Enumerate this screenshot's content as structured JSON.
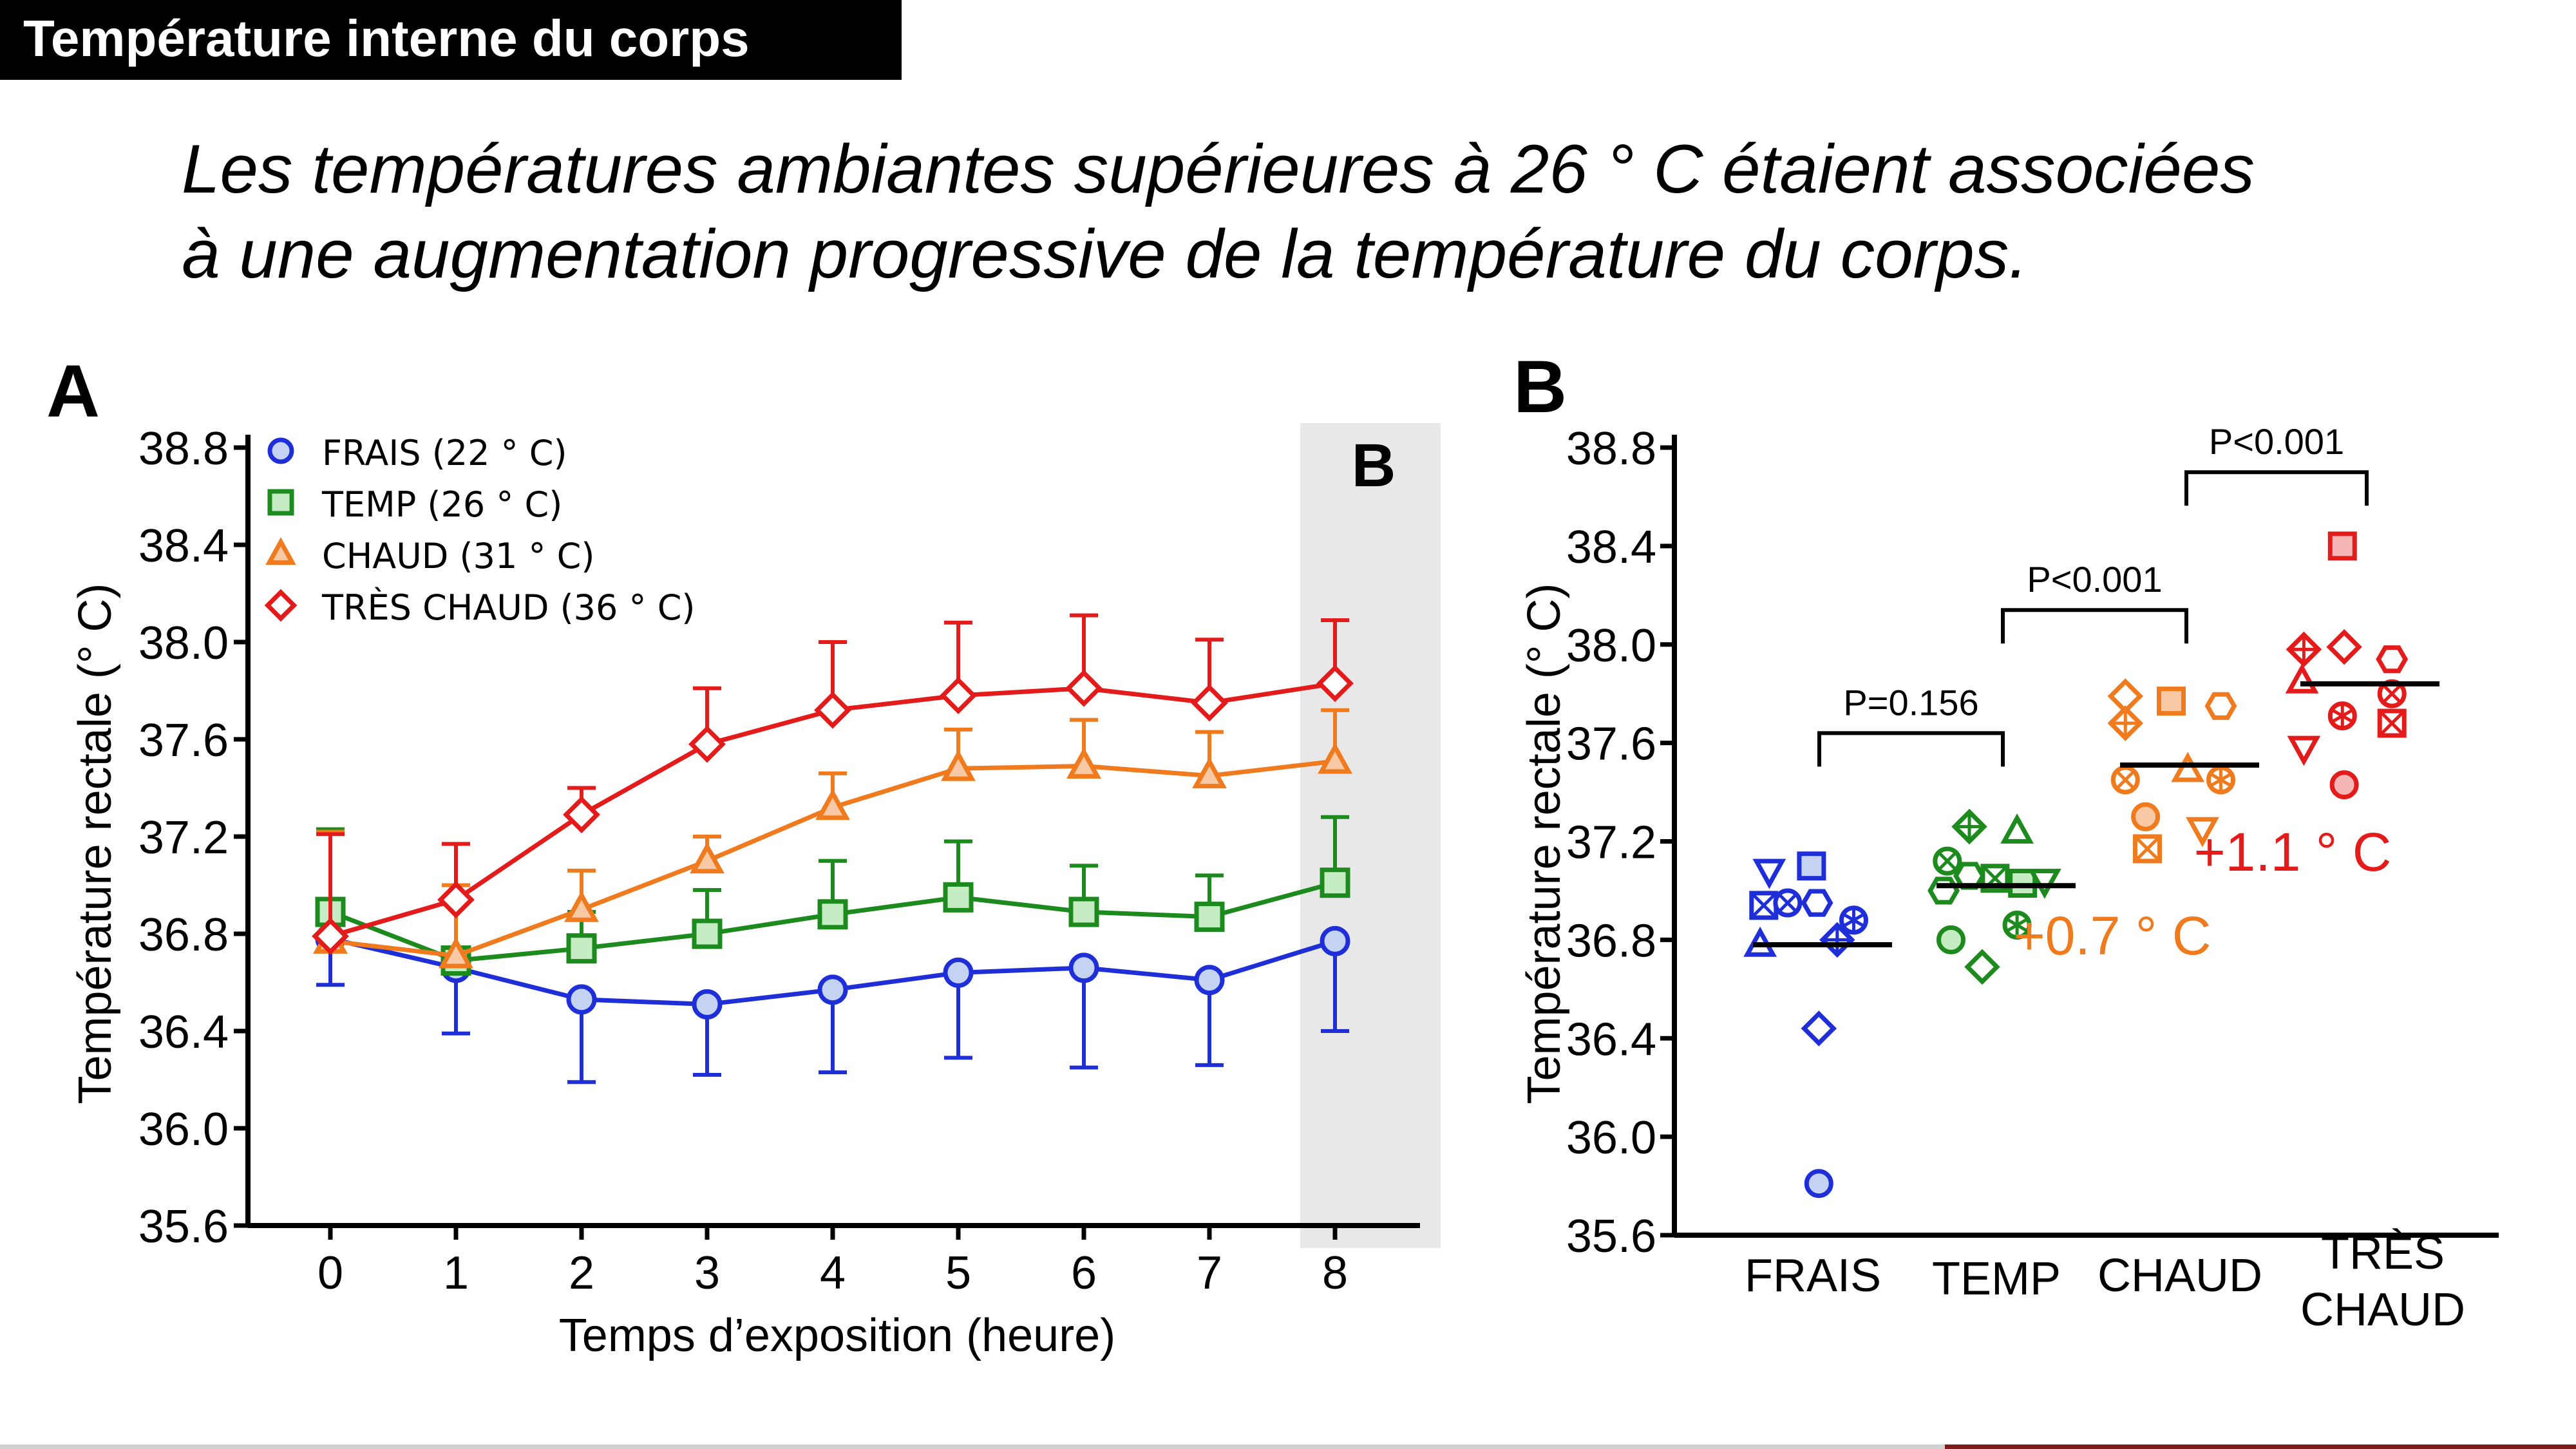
{
  "header": {
    "title": "Température interne du corps"
  },
  "subtitle": {
    "line1": "Les températures ambiantes supérieures à 26 ° C étaient associées",
    "line2": "à une augmentation progressive de la température du corps."
  },
  "colors": {
    "frais": "#1f2fd8",
    "temp": "#1c8a1c",
    "chaud": "#f07a1e",
    "tres_chaud": "#e41b1b"
  },
  "chart_data": [
    {
      "type": "line",
      "panel_label": "A",
      "shaded_label": "B",
      "xlabel": "Temps d’exposition (heure)",
      "ylabel": "Température rectale (° C)",
      "x": [
        0,
        1,
        2,
        3,
        4,
        5,
        6,
        7,
        8
      ],
      "xticks": [
        "0",
        "1",
        "2",
        "3",
        "4",
        "5",
        "6",
        "7",
        "8"
      ],
      "yticks": [
        "35.6",
        "36.0",
        "36.4",
        "36.8",
        "37.2",
        "37.6",
        "38.0",
        "38.4",
        "38.8"
      ],
      "ylim": [
        35.6,
        38.8
      ],
      "shaded_x": 8,
      "legend_position": "top-left",
      "series": [
        {
          "key": "frais",
          "name": "FRAIS (22 °  C)",
          "marker": "circle",
          "values": [
            36.78,
            36.66,
            36.53,
            36.51,
            36.57,
            36.64,
            36.66,
            36.61,
            36.77
          ],
          "errors": [
            0.19,
            0.27,
            0.34,
            0.29,
            0.34,
            0.35,
            0.41,
            0.35,
            0.37
          ]
        },
        {
          "key": "temp",
          "name": "TEMP (26 °  C)",
          "marker": "square",
          "values": [
            36.89,
            36.69,
            36.74,
            36.8,
            36.88,
            36.95,
            36.89,
            36.87,
            37.01
          ],
          "errors": [
            0.34,
            0.26,
            0.15,
            0.18,
            0.22,
            0.23,
            0.19,
            0.17,
            0.27
          ]
        },
        {
          "key": "chaud",
          "name": "CHAUD (31 °  C)",
          "marker": "triangle",
          "values": [
            36.77,
            36.71,
            36.9,
            37.1,
            37.32,
            37.48,
            37.49,
            37.45,
            37.51
          ],
          "errors": [
            0.45,
            0.29,
            0.16,
            0.1,
            0.14,
            0.16,
            0.19,
            0.18,
            0.21
          ]
        },
        {
          "key": "tres_chaud",
          "name": "TRÈS CHAUD (36 °  C)",
          "marker": "diamond",
          "values": [
            36.79,
            36.94,
            37.29,
            37.58,
            37.72,
            37.78,
            37.81,
            37.75,
            37.83
          ],
          "errors": [
            0.42,
            0.23,
            0.11,
            0.23,
            0.28,
            0.3,
            0.3,
            0.26,
            0.26
          ]
        }
      ]
    },
    {
      "type": "scatter",
      "panel_label": "B",
      "ylabel": "Température rectale (° C)",
      "yticks": [
        "35.6",
        "36.0",
        "36.4",
        "36.8",
        "37.2",
        "37.6",
        "38.0",
        "38.4",
        "38.8"
      ],
      "ylim": [
        35.6,
        38.8
      ],
      "categories": [
        "FRAIS",
        "TEMP",
        "CHAUD",
        "TRÈS\nCHAUD"
      ],
      "means": [
        36.78,
        37.02,
        37.51,
        37.84
      ],
      "groups": [
        {
          "key": "frais",
          "points": [
            {
              "dx": -0.29,
              "y": 37.08,
              "m": "tri-down"
            },
            {
              "dx": -0.06,
              "y": 37.1,
              "m": "square"
            },
            {
              "dx": -0.32,
              "y": 36.94,
              "m": "square-x"
            },
            {
              "dx": -0.19,
              "y": 36.95,
              "m": "circle-x"
            },
            {
              "dx": -0.03,
              "y": 36.95,
              "m": "hexagon"
            },
            {
              "dx": 0.17,
              "y": 36.88,
              "m": "circle-star"
            },
            {
              "dx": 0.08,
              "y": 36.8,
              "m": "diamond-plus"
            },
            {
              "dx": -0.34,
              "y": 36.78,
              "m": "triangle"
            },
            {
              "dx": -0.02,
              "y": 36.44,
              "m": "diamond"
            },
            {
              "dx": -0.02,
              "y": 35.81,
              "m": "circle"
            }
          ]
        },
        {
          "key": "temp",
          "points": [
            {
              "dx": -0.2,
              "y": 37.26,
              "m": "diamond-plus"
            },
            {
              "dx": 0.06,
              "y": 37.24,
              "m": "triangle"
            },
            {
              "dx": -0.32,
              "y": 37.12,
              "m": "circle-x"
            },
            {
              "dx": -0.2,
              "y": 37.06,
              "m": "hexagon"
            },
            {
              "dx": -0.06,
              "y": 37.05,
              "m": "square-x"
            },
            {
              "dx": 0.09,
              "y": 37.03,
              "m": "square"
            },
            {
              "dx": 0.21,
              "y": 37.04,
              "m": "tri-down"
            },
            {
              "dx": -0.34,
              "y": 37.0,
              "m": "hexagon"
            },
            {
              "dx": -0.3,
              "y": 36.8,
              "m": "circle"
            },
            {
              "dx": 0.06,
              "y": 36.86,
              "m": "circle-star"
            },
            {
              "dx": -0.13,
              "y": 36.69,
              "m": "diamond"
            }
          ]
        },
        {
          "key": "chaud",
          "points": [
            {
              "dx": -0.35,
              "y": 37.79,
              "m": "diamond"
            },
            {
              "dx": -0.1,
              "y": 37.77,
              "m": "square"
            },
            {
              "dx": 0.17,
              "y": 37.75,
              "m": "hexagon"
            },
            {
              "dx": -0.35,
              "y": 37.68,
              "m": "diamond-plus"
            },
            {
              "dx": -0.01,
              "y": 37.49,
              "m": "triangle"
            },
            {
              "dx": -0.35,
              "y": 37.45,
              "m": "circle-x"
            },
            {
              "dx": 0.17,
              "y": 37.45,
              "m": "circle-star"
            },
            {
              "dx": -0.24,
              "y": 37.3,
              "m": "circle"
            },
            {
              "dx": 0.07,
              "y": 37.25,
              "m": "tri-down"
            },
            {
              "dx": -0.23,
              "y": 37.17,
              "m": "square-x"
            }
          ]
        },
        {
          "key": "tres_chaud",
          "points": [
            {
              "dx": -0.15,
              "y": 38.4,
              "m": "square"
            },
            {
              "dx": -0.36,
              "y": 37.98,
              "m": "diamond-plus"
            },
            {
              "dx": -0.14,
              "y": 37.99,
              "m": "diamond"
            },
            {
              "dx": 0.12,
              "y": 37.94,
              "m": "hexagon"
            },
            {
              "dx": -0.37,
              "y": 37.85,
              "m": "triangle"
            },
            {
              "dx": 0.12,
              "y": 37.8,
              "m": "circle-x"
            },
            {
              "dx": -0.15,
              "y": 37.71,
              "m": "circle-star"
            },
            {
              "dx": 0.12,
              "y": 37.68,
              "m": "square-x"
            },
            {
              "dx": -0.36,
              "y": 37.58,
              "m": "tri-down"
            },
            {
              "dx": -0.14,
              "y": 37.43,
              "m": "circle"
            }
          ]
        }
      ],
      "comparisons": [
        {
          "from": 0,
          "to": 1,
          "y": 37.64,
          "label": "P=0.156"
        },
        {
          "from": 1,
          "to": 2,
          "y": 38.14,
          "label": "P<0.001"
        },
        {
          "from": 2,
          "to": 3,
          "y": 38.7,
          "label": "P<0.001"
        }
      ],
      "annotations": [
        {
          "text": "+0.7 °  C",
          "group": "chaud"
        },
        {
          "text": "+1.1 °  C",
          "group": "tres_chaud"
        }
      ]
    }
  ]
}
